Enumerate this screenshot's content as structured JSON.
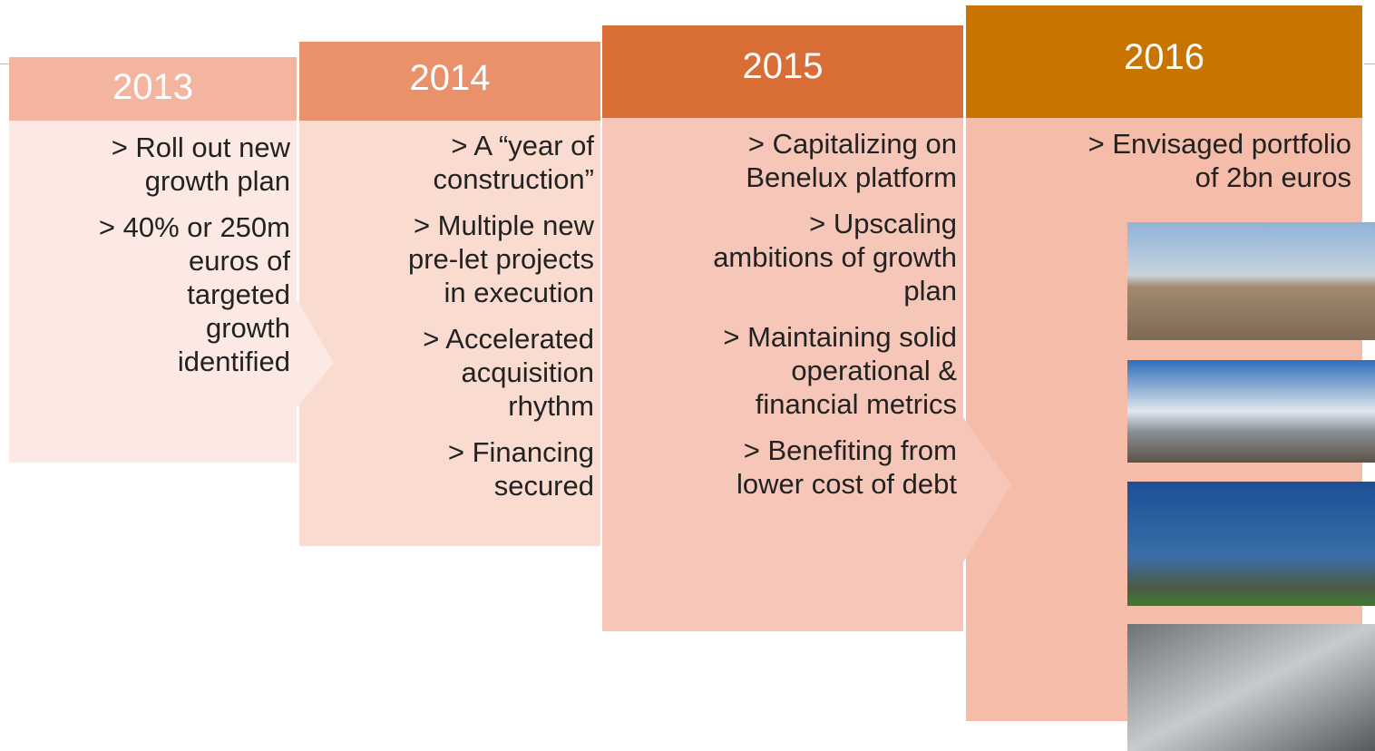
{
  "columns": [
    {
      "year": "2013",
      "items": [
        [
          "> Roll out new",
          "growth plan"
        ],
        [
          "> 40% or 250m",
          "euros of",
          "targeted",
          "growth",
          "identified"
        ]
      ]
    },
    {
      "year": "2014",
      "items": [
        [
          "> A “year of",
          "construction”"
        ],
        [
          "> Multiple new",
          "pre-let projects",
          "in execution"
        ],
        [
          "> Accelerated",
          "acquisition",
          "rhythm"
        ],
        [
          "> Financing",
          "secured"
        ]
      ]
    },
    {
      "year": "2015",
      "items": [
        [
          "> Capitalizing on",
          "Benelux platform"
        ],
        [
          "> Upscaling",
          "ambitions of growth",
          "plan"
        ],
        [
          "> Maintaining solid",
          "operational &",
          "financial metrics"
        ],
        [
          "> Benefiting from",
          "lower cost of debt"
        ]
      ]
    },
    {
      "year": "2016",
      "items": [
        [
          "> Envisaged portfolio",
          "of 2bn euros"
        ]
      ]
    }
  ]
}
